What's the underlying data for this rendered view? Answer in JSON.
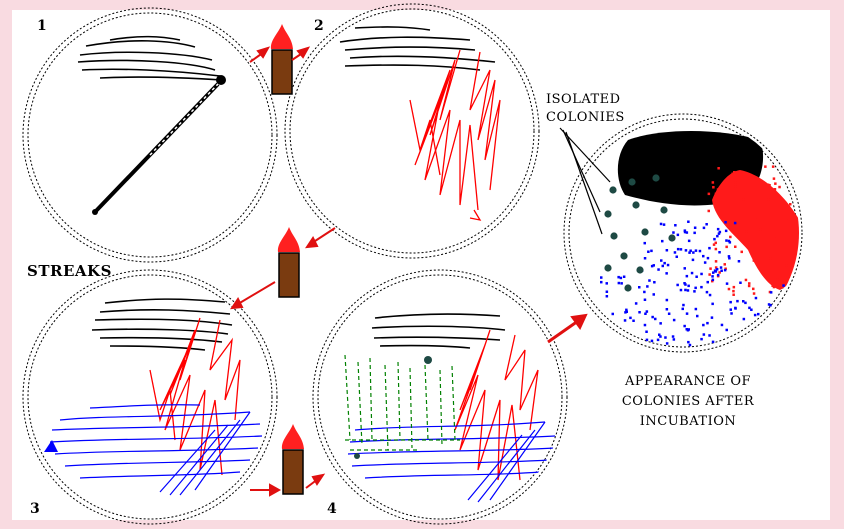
{
  "labels": {
    "plate1": "1",
    "plate2": "2",
    "plate3": "3",
    "plate4": "4",
    "streaks": "STREAKS",
    "isolated_line1": "ISOLATED",
    "isolated_line2": "COLONIES",
    "appearance_line1": "APPEARANCE OF",
    "appearance_line2": "COLONIES AFTER",
    "appearance_line3": "INCUBATION"
  },
  "colors": {
    "background": "#f9dbe1",
    "panel": "#ffffff",
    "streak1": "#000000",
    "streak2": "#ff0000",
    "streak3": "#0000ff",
    "streak4": "#008000",
    "isolated_colony": "#1e4a44",
    "burner_body": "#7a3b10",
    "flame": "#ff2020"
  }
}
